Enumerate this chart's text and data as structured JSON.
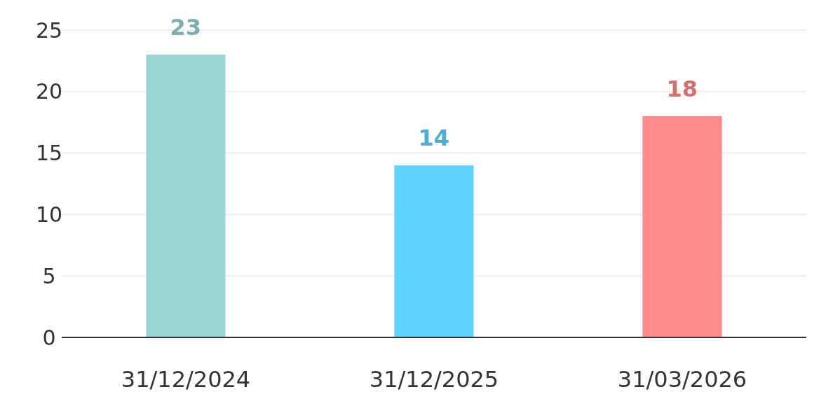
{
  "chart_data": {
    "type": "bar",
    "categories": [
      "31/12/2024",
      "31/12/2025",
      "31/03/2026"
    ],
    "values": [
      23,
      14,
      18
    ],
    "colors": [
      "#9ad6d6",
      "#5fd3fe",
      "#ff8b8a"
    ],
    "ylim": [
      0,
      25
    ],
    "yticks": [
      0,
      5,
      10,
      15,
      20,
      25
    ],
    "grid": "y",
    "data_labels": true
  }
}
